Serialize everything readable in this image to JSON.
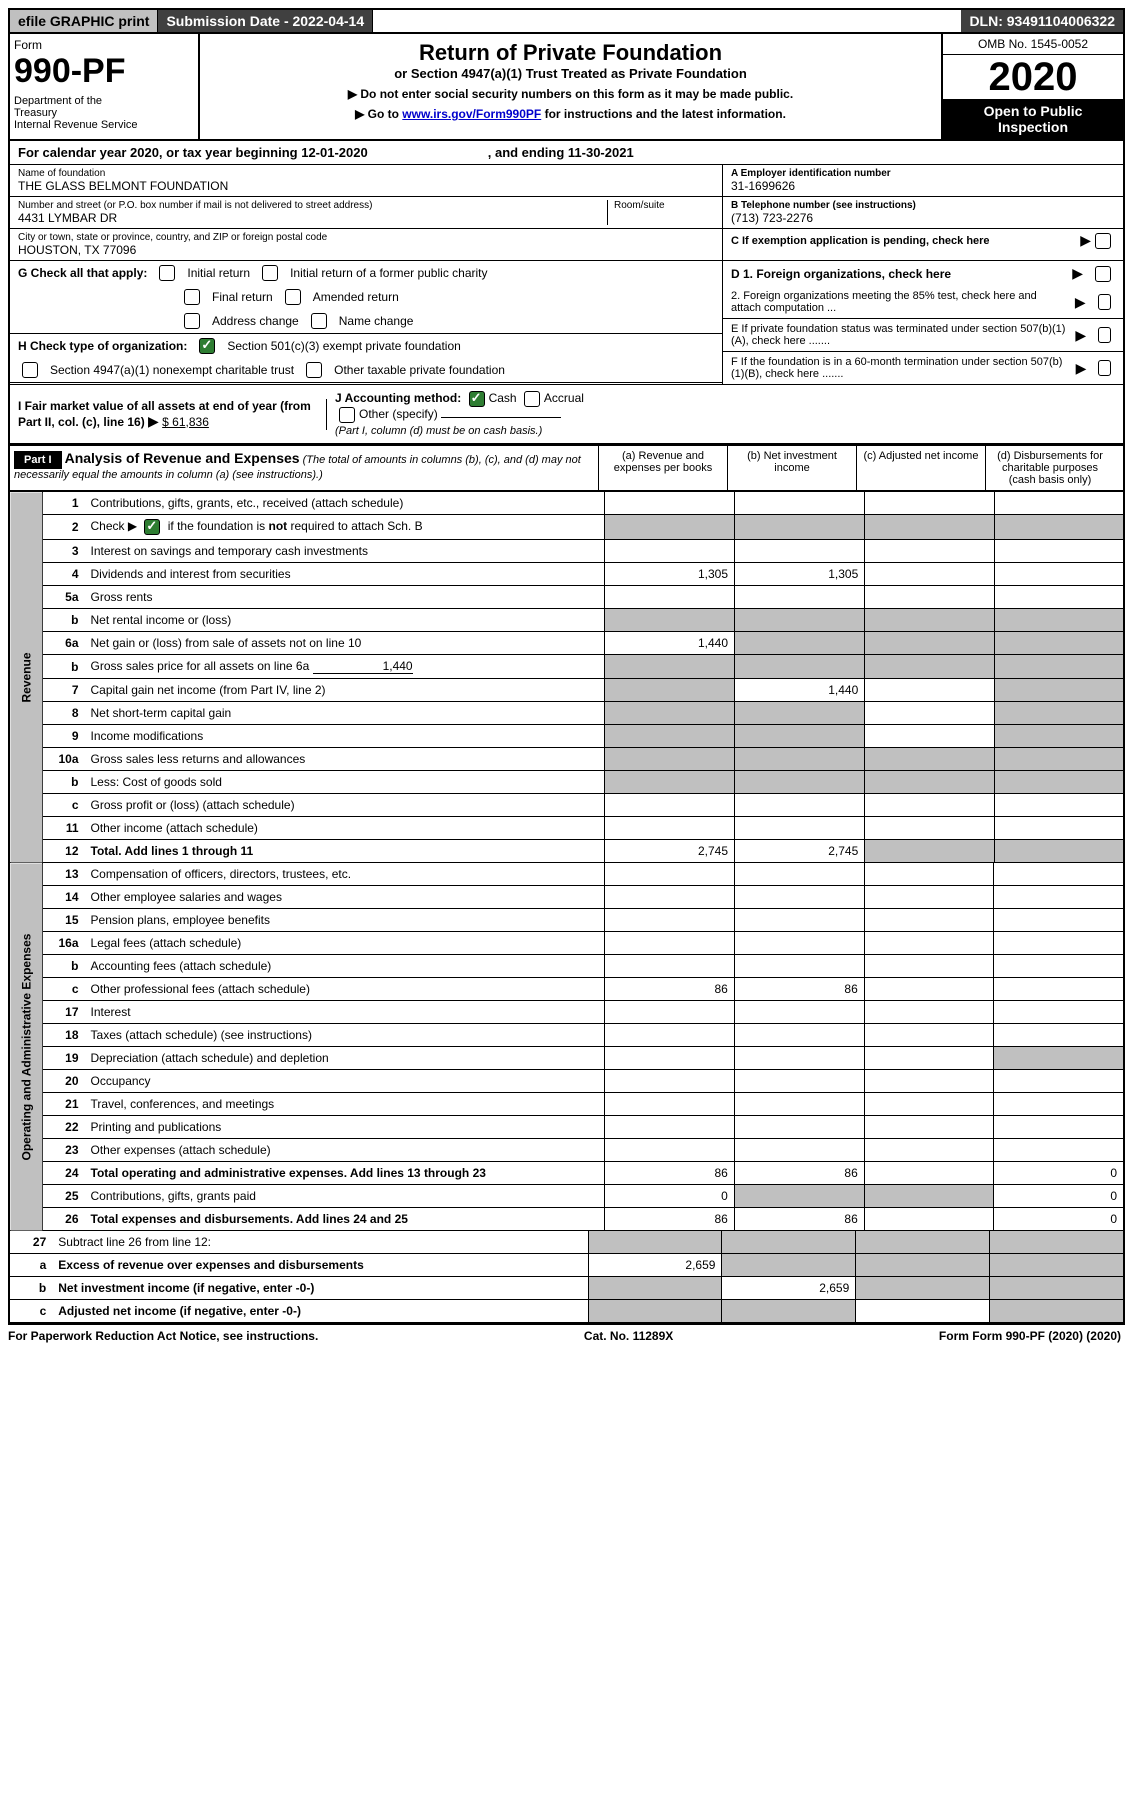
{
  "top": {
    "efile": "efile GRAPHIC print",
    "submission": "Submission Date - 2022-04-14",
    "dln": "DLN: 93491104006322"
  },
  "header": {
    "form_label": "Form",
    "form_number": "990-PF",
    "dept": "Department of the Treasury\nInternal Revenue Service",
    "title": "Return of Private Foundation",
    "subtitle": "or Section 4947(a)(1) Trust Treated as Private Foundation",
    "inst1": "▶ Do not enter social security numbers on this form as it may be made public.",
    "inst2_pre": "▶ Go to ",
    "inst2_link": "www.irs.gov/Form990PF",
    "inst2_post": " for instructions and the latest information.",
    "omb": "OMB No. 1545-0052",
    "year": "2020",
    "open": "Open to Public Inspection"
  },
  "calendar": {
    "text": "For calendar year 2020, or tax year beginning 12-01-2020",
    "ending": ", and ending 11-30-2021"
  },
  "entity": {
    "name_label": "Name of foundation",
    "name": "THE GLASS BELMONT FOUNDATION",
    "addr_label": "Number and street (or P.O. box number if mail is not delivered to street address)",
    "addr": "4431 LYMBAR DR",
    "room_label": "Room/suite",
    "city_label": "City or town, state or province, country, and ZIP or foreign postal code",
    "city": "HOUSTON, TX  77096",
    "a_label": "A Employer identification number",
    "a_val": "31-1699626",
    "b_label": "B Telephone number (see instructions)",
    "b_val": "(713) 723-2276",
    "c_label": "C If exemption application is pending, check here"
  },
  "sectionG": {
    "label": "G Check all that apply:",
    "opts": [
      "Initial return",
      "Initial return of a former public charity",
      "Final return",
      "Amended return",
      "Address change",
      "Name change"
    ]
  },
  "sectionH": {
    "label": "H Check type of organization:",
    "opt1": "Section 501(c)(3) exempt private foundation",
    "opt2": "Section 4947(a)(1) nonexempt charitable trust",
    "opt3": "Other taxable private foundation"
  },
  "sectionD": {
    "d1": "D 1. Foreign organizations, check here",
    "d2": "2. Foreign organizations meeting the 85% test, check here and attach computation ...",
    "e": "E  If private foundation status was terminated under section 507(b)(1)(A), check here .......",
    "f": "F  If the foundation is in a 60-month termination under section 507(b)(1)(B), check here ......."
  },
  "sectionI": {
    "label": "I Fair market value of all assets at end of year (from Part II, col. (c), line 16)",
    "val": "$  61,836",
    "j_label": "J Accounting method:",
    "cash": "Cash",
    "accrual": "Accrual",
    "other": "Other (specify)",
    "note": "(Part I, column (d) must be on cash basis.)"
  },
  "part1": {
    "label": "Part I",
    "title": "Analysis of Revenue and Expenses",
    "desc": "(The total of amounts in columns (b), (c), and (d) may not necessarily equal the amounts in column (a) (see instructions).)",
    "col_a": "(a)  Revenue and expenses per books",
    "col_b": "(b)  Net investment income",
    "col_c": "(c)  Adjusted net income",
    "col_d": "(d)  Disbursements for charitable purposes (cash basis only)"
  },
  "sideLabels": {
    "revenue": "Revenue",
    "expenses": "Operating and Administrative Expenses"
  },
  "rows": [
    {
      "n": "1",
      "d": "Contributions, gifts, grants, etc., received (attach schedule)"
    },
    {
      "n": "2",
      "d": "Check ▶ ☑ if the foundation is not required to attach Sch. B"
    },
    {
      "n": "3",
      "d": "Interest on savings and temporary cash investments"
    },
    {
      "n": "4",
      "d": "Dividends and interest from securities",
      "a": "1,305",
      "b": "1,305"
    },
    {
      "n": "5a",
      "d": "Gross rents"
    },
    {
      "n": "b",
      "d": "Net rental income or (loss)"
    },
    {
      "n": "6a",
      "d": "Net gain or (loss) from sale of assets not on line 10",
      "a": "1,440"
    },
    {
      "n": "b",
      "d": "Gross sales price for all assets on line 6a",
      "inline": "1,440"
    },
    {
      "n": "7",
      "d": "Capital gain net income (from Part IV, line 2)",
      "b": "1,440"
    },
    {
      "n": "8",
      "d": "Net short-term capital gain"
    },
    {
      "n": "9",
      "d": "Income modifications"
    },
    {
      "n": "10a",
      "d": "Gross sales less returns and allowances"
    },
    {
      "n": "b",
      "d": "Less: Cost of goods sold"
    },
    {
      "n": "c",
      "d": "Gross profit or (loss) (attach schedule)"
    },
    {
      "n": "11",
      "d": "Other income (attach schedule)"
    },
    {
      "n": "12",
      "d": "Total. Add lines 1 through 11",
      "a": "2,745",
      "b": "2,745",
      "bold": true
    }
  ],
  "exp_rows": [
    {
      "n": "13",
      "d": "Compensation of officers, directors, trustees, etc."
    },
    {
      "n": "14",
      "d": "Other employee salaries and wages"
    },
    {
      "n": "15",
      "d": "Pension plans, employee benefits"
    },
    {
      "n": "16a",
      "d": "Legal fees (attach schedule)"
    },
    {
      "n": "b",
      "d": "Accounting fees (attach schedule)"
    },
    {
      "n": "c",
      "d": "Other professional fees (attach schedule)",
      "a": "86",
      "b": "86"
    },
    {
      "n": "17",
      "d": "Interest"
    },
    {
      "n": "18",
      "d": "Taxes (attach schedule) (see instructions)"
    },
    {
      "n": "19",
      "d": "Depreciation (attach schedule) and depletion"
    },
    {
      "n": "20",
      "d": "Occupancy"
    },
    {
      "n": "21",
      "d": "Travel, conferences, and meetings"
    },
    {
      "n": "22",
      "d": "Printing and publications"
    },
    {
      "n": "23",
      "d": "Other expenses (attach schedule)"
    },
    {
      "n": "24",
      "d": "Total operating and administrative expenses. Add lines 13 through 23",
      "a": "86",
      "b": "86",
      "dcol": "0",
      "bold": true
    },
    {
      "n": "25",
      "d": "Contributions, gifts, grants paid",
      "a": "0",
      "dcol": "0"
    },
    {
      "n": "26",
      "d": "Total expenses and disbursements. Add lines 24 and 25",
      "a": "86",
      "b": "86",
      "dcol": "0",
      "bold": true
    }
  ],
  "final_rows": [
    {
      "n": "27",
      "d": "Subtract line 26 from line 12:"
    },
    {
      "n": "a",
      "d": "Excess of revenue over expenses and disbursements",
      "a": "2,659",
      "bold": true
    },
    {
      "n": "b",
      "d": "Net investment income (if negative, enter -0-)",
      "b": "2,659",
      "bold": true
    },
    {
      "n": "c",
      "d": "Adjusted net income (if negative, enter -0-)",
      "bold": true
    }
  ],
  "footer": {
    "left": "For Paperwork Reduction Act Notice, see instructions.",
    "center": "Cat. No. 11289X",
    "right": "Form 990-PF (2020)"
  }
}
